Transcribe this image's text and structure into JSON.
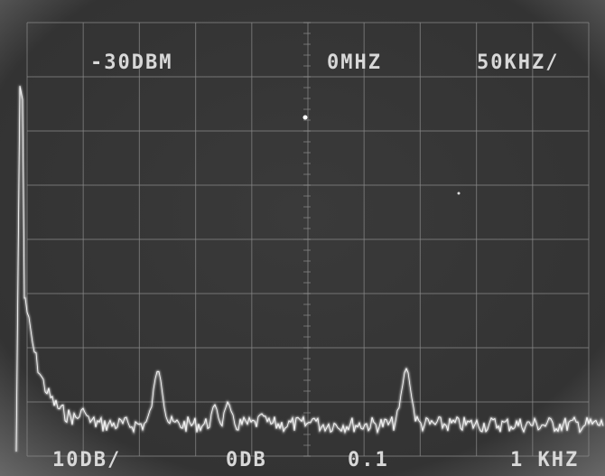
{
  "screen": {
    "top_left": "-30DBM",
    "top_center": "0MHZ",
    "top_right": "50KHZ/",
    "bottom_left": "10DB/",
    "bottom_center_left": "0DB",
    "bottom_center": "0.1",
    "bottom_right": "1 KHZ"
  }
}
